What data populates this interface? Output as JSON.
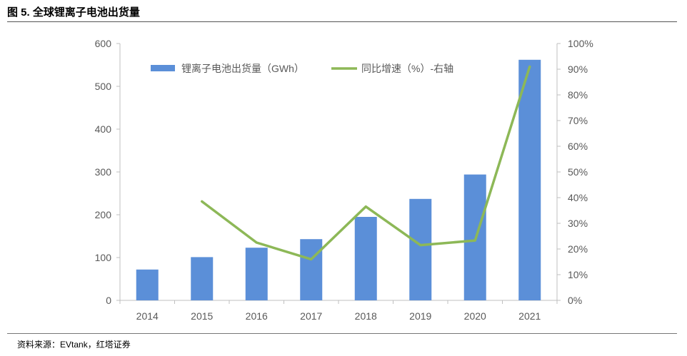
{
  "figure": {
    "title": "图 5. 全球锂离子电池出货量",
    "source": "资料来源：EVtank，红塔证券"
  },
  "colors": {
    "bar": "#5B8FD8",
    "line": "#8DB857",
    "axis": "#BFBFBF",
    "tick_text": "#595959"
  },
  "chart_data": {
    "type": "bar",
    "title": "",
    "categories": [
      "2014",
      "2015",
      "2016",
      "2017",
      "2018",
      "2019",
      "2020",
      "2021"
    ],
    "series": [
      {
        "name": "锂离子电池出货量（GWh）",
        "type": "bar",
        "axis": "left",
        "values": [
          72,
          101,
          123,
          143,
          195,
          237,
          294,
          562
        ]
      },
      {
        "name": "同比增速（%）-右轴",
        "type": "line",
        "axis": "right",
        "values": [
          null,
          0.385,
          0.225,
          0.16,
          0.365,
          0.215,
          0.233,
          0.91
        ]
      }
    ],
    "y_left": {
      "min": 0,
      "max": 600,
      "ticks": [
        "0",
        "100",
        "200",
        "300",
        "400",
        "500",
        "600"
      ]
    },
    "y_right": {
      "min": 0,
      "max": 1,
      "ticks": [
        "0%",
        "10%",
        "20%",
        "30%",
        "40%",
        "50%",
        "60%",
        "70%",
        "80%",
        "90%",
        "100%"
      ]
    },
    "legend": "top-left",
    "grid": false
  }
}
